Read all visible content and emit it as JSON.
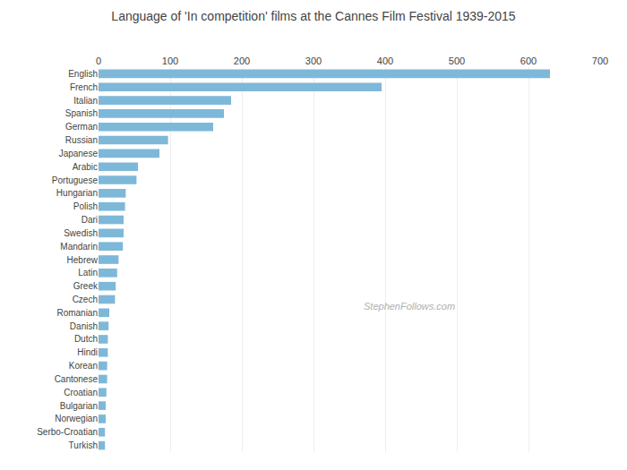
{
  "chart_data": {
    "type": "bar",
    "orientation": "horizontal",
    "title": "Language of 'In competition' films at the Cannes Film Festival 1939-2015",
    "categories": [
      "English",
      "French",
      "Italian",
      "Spanish",
      "German",
      "Russian",
      "Japanese",
      "Arabic",
      "Portuguese",
      "Hungarian",
      "Polish",
      "Dari",
      "Swedish",
      "Mandarin",
      "Hebrew",
      "Latin",
      "Greek",
      "Czech",
      "Romanian",
      "Danish",
      "Dutch",
      "Hindi",
      "Korean",
      "Cantonese",
      "Croatian",
      "Bulgarian",
      "Norwegian",
      "Serbo-Croatian",
      "Turkish"
    ],
    "values": [
      630,
      395,
      185,
      175,
      160,
      97,
      85,
      55,
      53,
      38,
      37,
      35,
      35,
      34,
      28,
      26,
      24,
      23,
      15,
      14,
      13,
      13,
      12,
      12,
      11,
      10,
      10,
      9,
      9
    ],
    "color": "#7eb8d9",
    "xlim": [
      0,
      700
    ],
    "xticks": [
      0,
      100,
      200,
      300,
      400,
      500,
      600,
      700
    ],
    "grid": true,
    "annotations": [
      "StephenFollows.com"
    ]
  }
}
